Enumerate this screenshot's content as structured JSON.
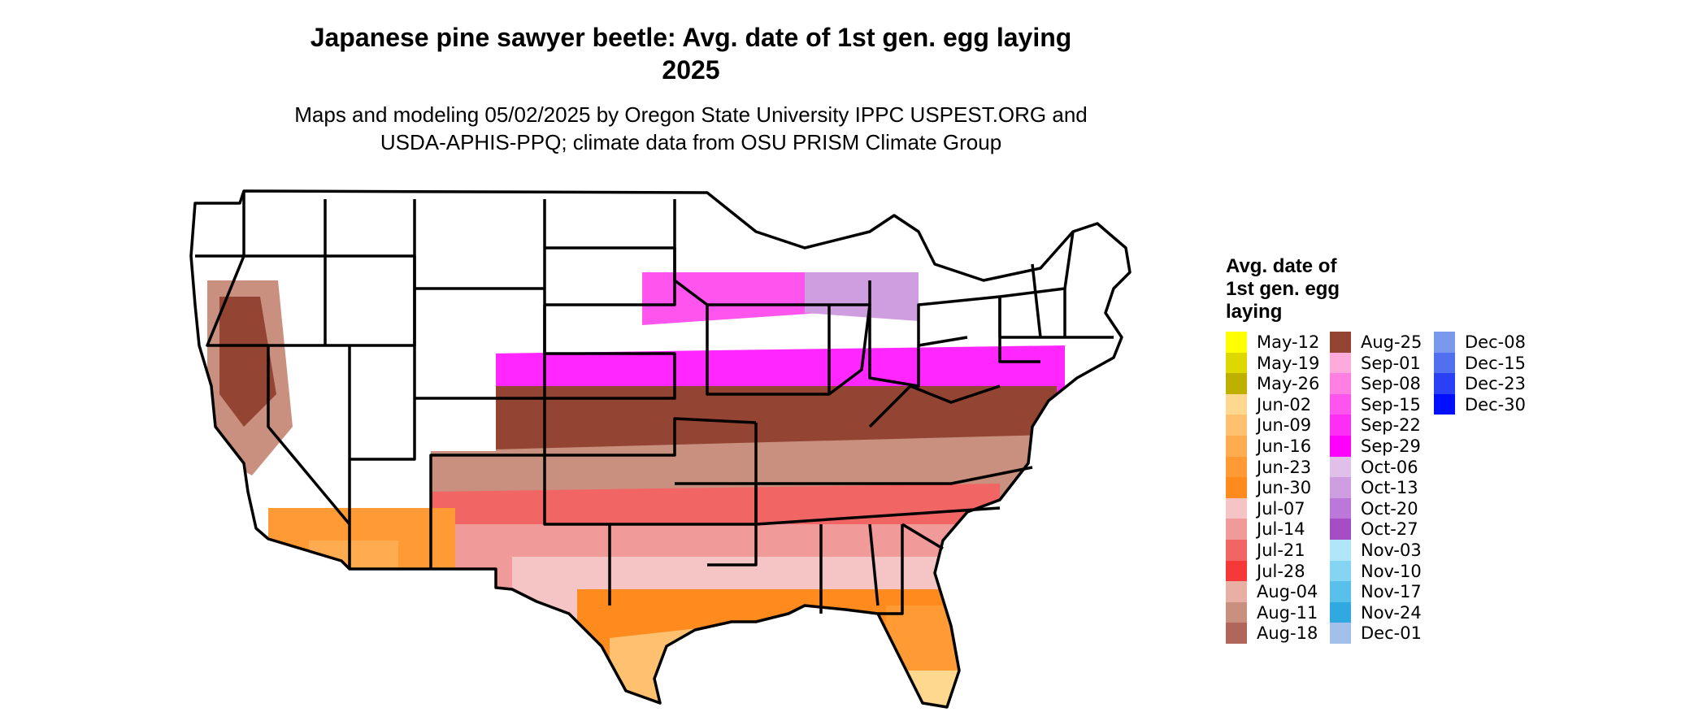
{
  "title_line1": "Japanese pine sawyer beetle: Avg. date of 1st gen. egg laying",
  "title_line2": "2025",
  "subtitle_line1": "Maps and modeling 05/02/2025 by Oregon State University IPPC USPEST.ORG and",
  "subtitle_line2": "USDA-APHIS-PPQ; climate data from OSU PRISM Climate Group",
  "legend": {
    "title_line1": "Avg. date of",
    "title_line2": "1st gen. egg",
    "title_line3": "laying",
    "columns": [
      [
        {
          "label": "May-12",
          "color": "#ffff00"
        },
        {
          "label": "May-19",
          "color": "#dcd800"
        },
        {
          "label": "May-26",
          "color": "#bfb000"
        },
        {
          "label": "Jun-02",
          "color": "#ffd890"
        },
        {
          "label": "Jun-09",
          "color": "#ffc070"
        },
        {
          "label": "Jun-16",
          "color": "#ffab50"
        },
        {
          "label": "Jun-23",
          "color": "#ff9a35"
        },
        {
          "label": "Jun-30",
          "color": "#ff8a1e"
        },
        {
          "label": "Jul-07",
          "color": "#f5c5c5"
        },
        {
          "label": "Jul-14",
          "color": "#f09a9a"
        },
        {
          "label": "Jul-21",
          "color": "#f26565"
        },
        {
          "label": "Jul-28",
          "color": "#f53838"
        },
        {
          "label": "Aug-04",
          "color": "#e8b0a4"
        },
        {
          "label": "Aug-11",
          "color": "#c9907f"
        },
        {
          "label": "Aug-18",
          "color": "#b0675a"
        }
      ],
      [
        {
          "label": "Aug-25",
          "color": "#944432"
        },
        {
          "label": "Sep-01",
          "color": "#ffaadd"
        },
        {
          "label": "Sep-08",
          "color": "#ff80e2"
        },
        {
          "label": "Sep-15",
          "color": "#ff55ee"
        },
        {
          "label": "Sep-22",
          "color": "#ff2ef5"
        },
        {
          "label": "Sep-29",
          "color": "#ff00ff"
        },
        {
          "label": "Oct-06",
          "color": "#e0c0e8"
        },
        {
          "label": "Oct-13",
          "color": "#cf9ee0"
        },
        {
          "label": "Oct-20",
          "color": "#bc78d8"
        },
        {
          "label": "Oct-27",
          "color": "#a64cc4"
        },
        {
          "label": "Nov-03",
          "color": "#b0e6f8"
        },
        {
          "label": "Nov-10",
          "color": "#85d5f2"
        },
        {
          "label": "Nov-17",
          "color": "#58c0ea"
        },
        {
          "label": "Nov-24",
          "color": "#30a8e0"
        },
        {
          "label": "Dec-01",
          "color": "#a3c0ea"
        }
      ],
      [
        {
          "label": "Dec-08",
          "color": "#7a98ec"
        },
        {
          "label": "Dec-15",
          "color": "#5070f0"
        },
        {
          "label": "Dec-23",
          "color": "#2a40f5"
        },
        {
          "label": "Dec-30",
          "color": "#0010ff"
        }
      ]
    ]
  },
  "map": {
    "region": "Contiguous United States",
    "no_data_color": "#ffffff",
    "border_color": "#000000"
  }
}
